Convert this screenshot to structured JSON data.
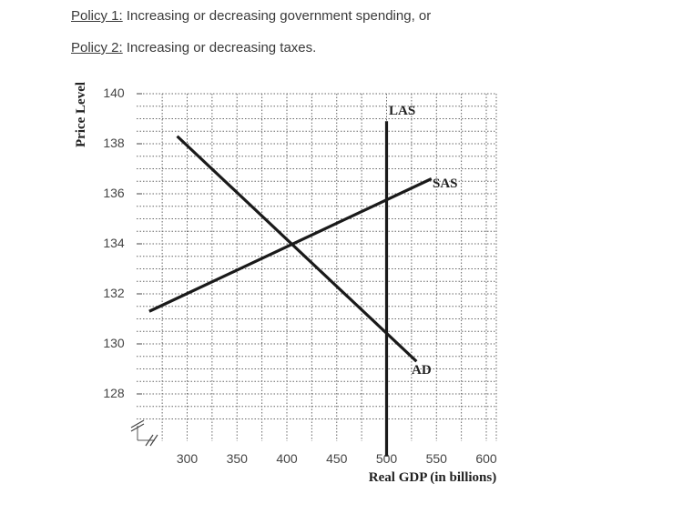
{
  "policies": [
    {
      "label": "Policy 1:",
      "text": " Increasing or decreasing government spending, or"
    },
    {
      "label": "Policy 2:",
      "text": " Increasing or decreasing taxes."
    }
  ],
  "chart_data": {
    "type": "line",
    "title": "",
    "xlabel": "Real GDP (in billions)",
    "ylabel": "Price Level",
    "x_ticks": [
      300,
      350,
      400,
      450,
      500,
      550,
      600
    ],
    "y_ticks": [
      128,
      130,
      132,
      134,
      136,
      138,
      140
    ],
    "xlim": [
      260,
      610
    ],
    "ylim": [
      126,
      140
    ],
    "grid": true,
    "axis_break": true,
    "series": [
      {
        "name": "AD",
        "points": [
          [
            290,
            138.3
          ],
          [
            530,
            129.3
          ]
        ]
      },
      {
        "name": "SAS",
        "points": [
          [
            262,
            131.3
          ],
          [
            545,
            136.6
          ]
        ]
      },
      {
        "name": "LAS",
        "points": [
          [
            500,
            138.9
          ],
          [
            500,
            125.5
          ]
        ]
      }
    ]
  }
}
